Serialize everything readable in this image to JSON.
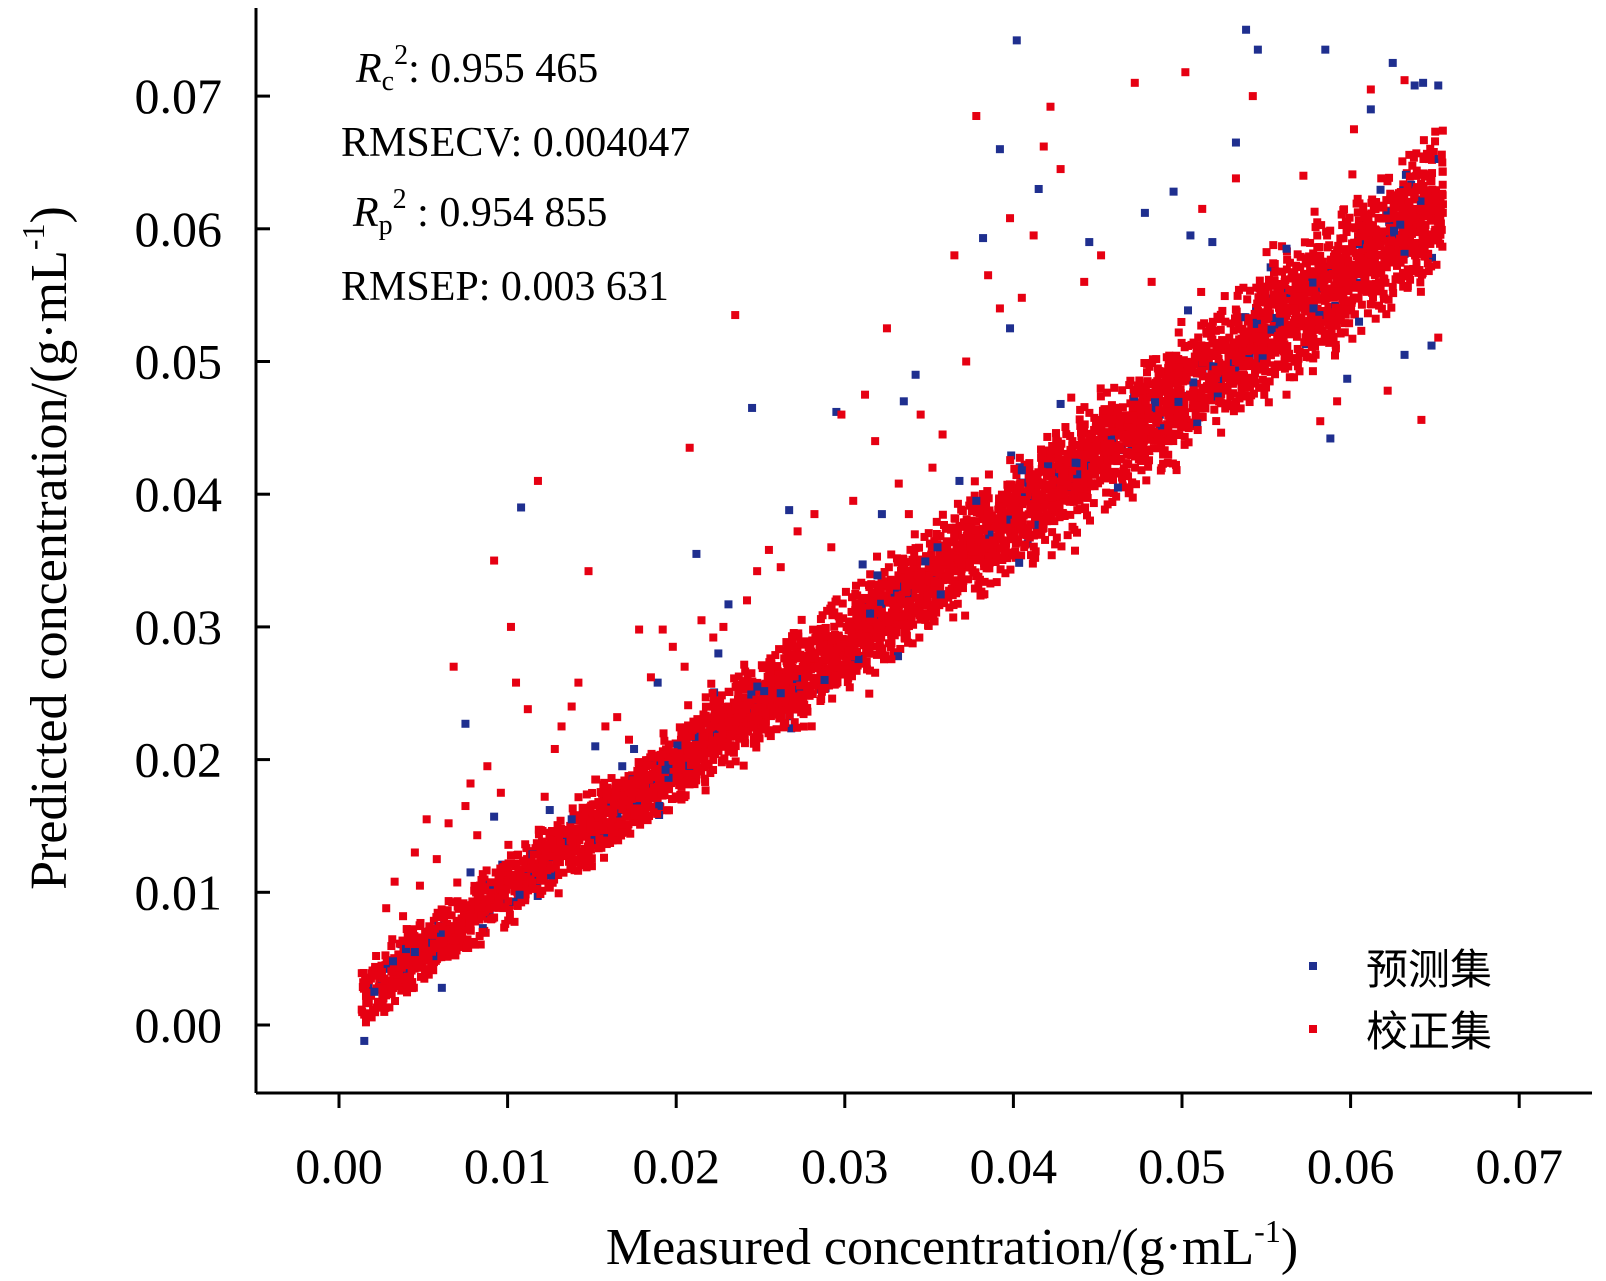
{
  "chart_data": {
    "type": "scatter",
    "xlabel": "Measured concentration/(g·mL",
    "xlabel_sup": "-1",
    "xlabel_close": ")",
    "ylabel": "Predicted concentration/(g·mL",
    "ylabel_sup": "-1",
    "ylabel_close": ")",
    "xlim": [
      -0.005,
      0.074
    ],
    "ylim": [
      -0.005,
      0.075
    ],
    "x_ticks": [
      "0.00",
      "0.01",
      "0.02",
      "0.03",
      "0.04",
      "0.05",
      "0.06",
      "0.07"
    ],
    "y_ticks": [
      "0.00",
      "0.01",
      "0.02",
      "0.03",
      "0.04",
      "0.05",
      "0.06",
      "0.07"
    ],
    "grid": false,
    "legend_position": "bottom-right",
    "series": [
      {
        "name": "预测集",
        "color": "#1f2f8f",
        "points": [
          [
            0.0015,
            -0.0012
          ],
          [
            0.0021,
            0.0025
          ],
          [
            0.0032,
            0.0048
          ],
          [
            0.0045,
            0.0055
          ],
          [
            0.0061,
            0.0028
          ],
          [
            0.0075,
            0.0227
          ],
          [
            0.0078,
            0.0115
          ],
          [
            0.0092,
            0.0157
          ],
          [
            0.0108,
            0.039
          ],
          [
            0.0125,
            0.0162
          ],
          [
            0.0138,
            0.0155
          ],
          [
            0.0152,
            0.021
          ],
          [
            0.0168,
            0.0195
          ],
          [
            0.0175,
            0.0208
          ],
          [
            0.0189,
            0.0258
          ],
          [
            0.0212,
            0.0355
          ],
          [
            0.0225,
            0.028
          ],
          [
            0.0231,
            0.0317
          ],
          [
            0.0245,
            0.0465
          ],
          [
            0.0262,
            0.025
          ],
          [
            0.0267,
            0.0388
          ],
          [
            0.0288,
            0.026
          ],
          [
            0.0295,
            0.0462
          ],
          [
            0.0315,
            0.031
          ],
          [
            0.0322,
            0.0385
          ],
          [
            0.0335,
            0.047
          ],
          [
            0.0342,
            0.049
          ],
          [
            0.0355,
            0.036
          ],
          [
            0.0368,
            0.041
          ],
          [
            0.0378,
            0.0395
          ],
          [
            0.0382,
            0.0593
          ],
          [
            0.0392,
            0.066
          ],
          [
            0.0398,
            0.0525
          ],
          [
            0.0402,
            0.0742
          ],
          [
            0.0405,
            0.0418
          ],
          [
            0.0415,
            0.063
          ],
          [
            0.0428,
            0.0468
          ],
          [
            0.0445,
            0.059
          ],
          [
            0.0462,
            0.0405
          ],
          [
            0.0478,
            0.0612
          ],
          [
            0.0495,
            0.0628
          ],
          [
            0.0505,
            0.0595
          ],
          [
            0.0518,
            0.059
          ],
          [
            0.0532,
            0.0665
          ],
          [
            0.0538,
            0.075
          ],
          [
            0.0545,
            0.0735
          ],
          [
            0.0558,
            0.053
          ],
          [
            0.0562,
            0.0585
          ],
          [
            0.0578,
            0.054
          ],
          [
            0.0585,
            0.0735
          ],
          [
            0.0588,
            0.0442
          ],
          [
            0.0598,
            0.0487
          ],
          [
            0.0605,
            0.053
          ],
          [
            0.0612,
            0.069
          ],
          [
            0.0625,
            0.0725
          ],
          [
            0.0632,
            0.0505
          ],
          [
            0.0638,
            0.0708
          ],
          [
            0.0643,
            0.071
          ],
          [
            0.0648,
            0.0512
          ],
          [
            0.0652,
            0.0708
          ]
        ]
      },
      {
        "name": "校正集",
        "color": "#e60012",
        "points": [
          [
            0.0016,
            0.0002
          ],
          [
            0.0022,
            0.0052
          ],
          [
            0.0028,
            0.0088
          ],
          [
            0.0033,
            0.0108
          ],
          [
            0.0038,
            0.0082
          ],
          [
            0.0045,
            0.013
          ],
          [
            0.0048,
            0.0105
          ],
          [
            0.0052,
            0.0155
          ],
          [
            0.0058,
            0.0125
          ],
          [
            0.0065,
            0.0152
          ],
          [
            0.0068,
            0.027
          ],
          [
            0.0075,
            0.0165
          ],
          [
            0.0078,
            0.0182
          ],
          [
            0.0082,
            0.0143
          ],
          [
            0.0088,
            0.0195
          ],
          [
            0.0092,
            0.035
          ],
          [
            0.0096,
            0.0175
          ],
          [
            0.0102,
            0.03
          ],
          [
            0.0105,
            0.0258
          ],
          [
            0.0112,
            0.0238
          ],
          [
            0.0118,
            0.041
          ],
          [
            0.0122,
            0.0172
          ],
          [
            0.0128,
            0.0208
          ],
          [
            0.0132,
            0.0225
          ],
          [
            0.0138,
            0.024
          ],
          [
            0.0142,
            0.0258
          ],
          [
            0.0148,
            0.0342
          ],
          [
            0.0152,
            0.0185
          ],
          [
            0.0158,
            0.0225
          ],
          [
            0.0165,
            0.0232
          ],
          [
            0.0172,
            0.0215
          ],
          [
            0.0178,
            0.0298
          ],
          [
            0.0185,
            0.0262
          ],
          [
            0.0192,
            0.0298
          ],
          [
            0.0198,
            0.0285
          ],
          [
            0.0205,
            0.027
          ],
          [
            0.0208,
            0.0435
          ],
          [
            0.0215,
            0.0305
          ],
          [
            0.0222,
            0.0292
          ],
          [
            0.0228,
            0.03
          ],
          [
            0.0235,
            0.0535
          ],
          [
            0.0242,
            0.032
          ],
          [
            0.0248,
            0.0342
          ],
          [
            0.0255,
            0.0358
          ],
          [
            0.0262,
            0.0345
          ],
          [
            0.0272,
            0.0372
          ],
          [
            0.0282,
            0.0385
          ],
          [
            0.0292,
            0.036
          ],
          [
            0.0298,
            0.046
          ],
          [
            0.0305,
            0.0395
          ],
          [
            0.0312,
            0.0475
          ],
          [
            0.0318,
            0.044
          ],
          [
            0.0325,
            0.0525
          ],
          [
            0.0332,
            0.0408
          ],
          [
            0.0338,
            0.0385
          ],
          [
            0.0345,
            0.046
          ],
          [
            0.0352,
            0.042
          ],
          [
            0.0358,
            0.0445
          ],
          [
            0.0365,
            0.058
          ],
          [
            0.0372,
            0.05
          ],
          [
            0.0378,
            0.0685
          ],
          [
            0.0385,
            0.0565
          ],
          [
            0.0392,
            0.054
          ],
          [
            0.0398,
            0.0608
          ],
          [
            0.0405,
            0.0548
          ],
          [
            0.0412,
            0.0595
          ],
          [
            0.0418,
            0.0662
          ],
          [
            0.0422,
            0.0692
          ],
          [
            0.0428,
            0.0645
          ],
          [
            0.0435,
            0.044
          ],
          [
            0.0442,
            0.056
          ],
          [
            0.0452,
            0.058
          ],
          [
            0.0462,
            0.0465
          ],
          [
            0.0472,
            0.071
          ],
          [
            0.0482,
            0.056
          ],
          [
            0.0492,
            0.044
          ],
          [
            0.0502,
            0.0718
          ],
          [
            0.0512,
            0.0615
          ],
          [
            0.0522,
            0.047
          ],
          [
            0.0532,
            0.0638
          ],
          [
            0.0542,
            0.07
          ],
          [
            0.0552,
            0.0485
          ],
          [
            0.0562,
            0.0475
          ],
          [
            0.0572,
            0.064
          ],
          [
            0.0582,
            0.0455
          ],
          [
            0.0592,
            0.047
          ],
          [
            0.0602,
            0.0675
          ],
          [
            0.0612,
            0.0705
          ],
          [
            0.0622,
            0.0478
          ],
          [
            0.0632,
            0.0712
          ],
          [
            0.0642,
            0.0456
          ],
          [
            0.0652,
            0.0518
          ]
        ]
      }
    ],
    "bulk_band": {
      "description_free": true,
      "x_range": [
        0.0013,
        0.0655
      ],
      "slope": 0.935,
      "intercept": 0.0009,
      "spread_low_x": 0.0018,
      "spread_high_x": 0.0045
    },
    "annotations": [
      {
        "name": "rc2",
        "italic": "R",
        "sub": "c",
        "sup": "2",
        "text": ": 0.955 465"
      },
      {
        "name": "rmsecv",
        "text": "RMSECV: 0.004047"
      },
      {
        "name": "rp2",
        "italic": "R",
        "sub": "p",
        "sup": "2",
        "text": " : 0.954 855"
      },
      {
        "name": "rmsep",
        "text": "RMSEP: 0.003 631"
      }
    ]
  }
}
